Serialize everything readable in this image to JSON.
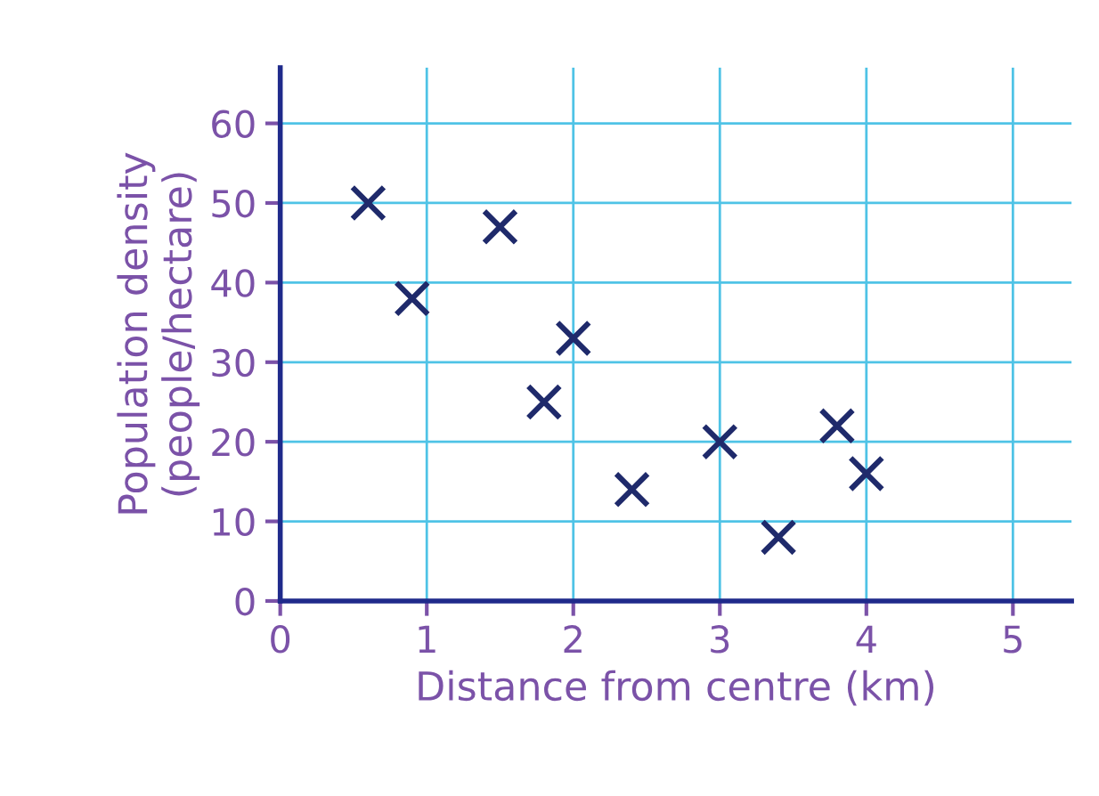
{
  "chart_data": {
    "type": "scatter",
    "xlabel": "Distance from centre (km)",
    "ylabel": "Population density\n(people/hectare)",
    "x": [
      0.6,
      0.9,
      1.5,
      1.8,
      2.0,
      2.4,
      3.0,
      3.4,
      3.8,
      4.0
    ],
    "series": [
      {
        "color": "#1f2a6b",
        "values": [
          50,
          38,
          47,
          25,
          33,
          14,
          20,
          8,
          22,
          16
        ]
      }
    ],
    "xlim": [
      0,
      5.4
    ],
    "ylim": [
      0,
      67
    ],
    "xticks": [
      0,
      1,
      2,
      3,
      4,
      5
    ],
    "yticks": [
      0,
      10,
      20,
      30,
      40,
      50,
      60
    ],
    "marker": "cross",
    "grid": true
  }
}
